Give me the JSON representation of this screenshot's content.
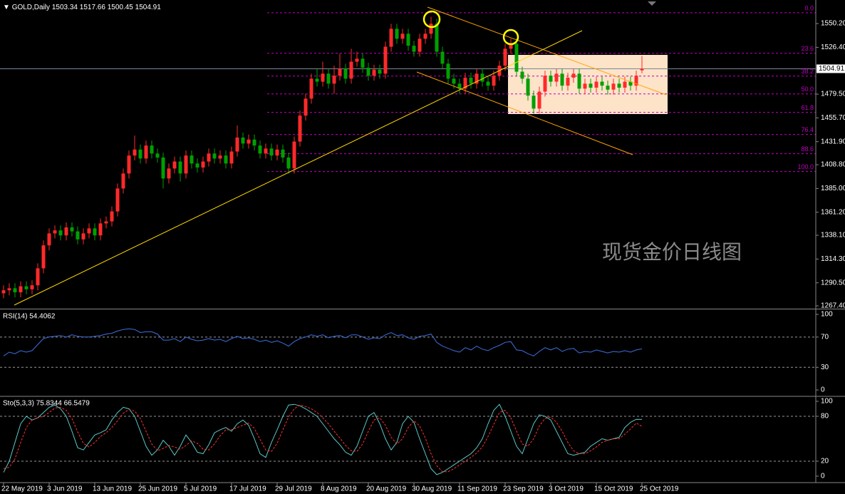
{
  "chart_data": [
    {
      "type": "candlestick",
      "header": {
        "symbol": "GOLD,Daily",
        "ohlc": [
          1503.34,
          1517.66,
          1500.45,
          1504.91
        ]
      },
      "open": [
        1280,
        1283,
        1285,
        1281,
        1287,
        1284,
        1288,
        1305,
        1328,
        1340,
        1343,
        1338,
        1346,
        1342,
        1334,
        1340,
        1345,
        1338,
        1350,
        1352,
        1362,
        1385,
        1400,
        1418,
        1424,
        1415,
        1428,
        1420,
        1416,
        1395,
        1405,
        1412,
        1400,
        1418,
        1410,
        1406,
        1412,
        1420,
        1415,
        1418,
        1410,
        1422,
        1436,
        1430,
        1434,
        1428,
        1420,
        1425,
        1418,
        1424,
        1416,
        1405,
        1432,
        1458,
        1475,
        1495,
        1492,
        1500,
        1490,
        1498,
        1505,
        1495,
        1512,
        1515,
        1506,
        1498,
        1504,
        1500,
        1527,
        1545,
        1535,
        1540,
        1528,
        1522,
        1535,
        1540,
        1550,
        1522,
        1510,
        1495,
        1490,
        1485,
        1496,
        1490,
        1500,
        1492,
        1488,
        1498,
        1508,
        1525,
        1530,
        1502,
        1495,
        1478,
        1465,
        1482,
        1498,
        1492,
        1500,
        1488,
        1496,
        1500,
        1485,
        1490,
        1486,
        1492,
        1488,
        1484,
        1490,
        1486,
        1492,
        1488,
        1503.34
      ],
      "high": [
        1288,
        1290,
        1290,
        1292,
        1292,
        1293,
        1310,
        1333,
        1345,
        1348,
        1348,
        1351,
        1351,
        1347,
        1345,
        1350,
        1350,
        1355,
        1357,
        1367,
        1390,
        1405,
        1423,
        1438,
        1429,
        1433,
        1433,
        1425,
        1421,
        1410,
        1417,
        1417,
        1423,
        1423,
        1415,
        1417,
        1425,
        1425,
        1423,
        1423,
        1427,
        1448,
        1441,
        1439,
        1439,
        1433,
        1430,
        1430,
        1429,
        1429,
        1421,
        1437,
        1463,
        1480,
        1500,
        1505,
        1512,
        1505,
        1508,
        1520,
        1510,
        1525,
        1522,
        1520,
        1511,
        1509,
        1509,
        1532,
        1550,
        1550,
        1545,
        1545,
        1533,
        1540,
        1545,
        1557,
        1555,
        1527,
        1515,
        1500,
        1495,
        1501,
        1501,
        1505,
        1505,
        1497,
        1503,
        1513,
        1530,
        1535,
        1535,
        1507,
        1500,
        1483,
        1487,
        1503,
        1503,
        1505,
        1505,
        1501,
        1505,
        1505,
        1495,
        1495,
        1497,
        1497,
        1493,
        1495,
        1495,
        1497,
        1497,
        1503,
        1517.66
      ],
      "low": [
        1275,
        1278,
        1276,
        1276,
        1279,
        1279,
        1283,
        1300,
        1323,
        1335,
        1333,
        1333,
        1337,
        1329,
        1329,
        1335,
        1333,
        1333,
        1345,
        1347,
        1357,
        1380,
        1395,
        1413,
        1410,
        1410,
        1415,
        1411,
        1385,
        1390,
        1400,
        1392,
        1395,
        1405,
        1401,
        1401,
        1407,
        1410,
        1410,
        1405,
        1405,
        1417,
        1425,
        1425,
        1423,
        1415,
        1415,
        1413,
        1413,
        1411,
        1400,
        1400,
        1427,
        1453,
        1470,
        1487,
        1487,
        1485,
        1480,
        1493,
        1490,
        1490,
        1507,
        1501,
        1493,
        1493,
        1495,
        1495,
        1522,
        1530,
        1530,
        1523,
        1517,
        1517,
        1530,
        1535,
        1517,
        1505,
        1490,
        1485,
        1480,
        1480,
        1485,
        1485,
        1487,
        1483,
        1483,
        1493,
        1503,
        1520,
        1497,
        1490,
        1473,
        1460,
        1460,
        1477,
        1487,
        1487,
        1483,
        1483,
        1491,
        1480,
        1480,
        1481,
        1481,
        1483,
        1479,
        1479,
        1481,
        1481,
        1483,
        1483,
        1500.45
      ],
      "close": [
        1283,
        1285,
        1281,
        1287,
        1284,
        1288,
        1305,
        1328,
        1340,
        1343,
        1338,
        1346,
        1342,
        1334,
        1340,
        1345,
        1338,
        1350,
        1352,
        1362,
        1385,
        1400,
        1418,
        1424,
        1415,
        1428,
        1420,
        1416,
        1395,
        1405,
        1412,
        1400,
        1418,
        1410,
        1406,
        1412,
        1420,
        1415,
        1418,
        1410,
        1422,
        1436,
        1430,
        1434,
        1428,
        1420,
        1425,
        1418,
        1424,
        1416,
        1405,
        1432,
        1458,
        1475,
        1495,
        1492,
        1500,
        1490,
        1498,
        1505,
        1495,
        1512,
        1515,
        1506,
        1498,
        1504,
        1500,
        1527,
        1545,
        1535,
        1540,
        1528,
        1522,
        1535,
        1540,
        1550,
        1522,
        1510,
        1495,
        1490,
        1485,
        1496,
        1490,
        1500,
        1492,
        1488,
        1498,
        1508,
        1525,
        1530,
        1502,
        1495,
        1478,
        1465,
        1482,
        1498,
        1492,
        1500,
        1488,
        1496,
        1500,
        1485,
        1490,
        1486,
        1492,
        1488,
        1484,
        1490,
        1486,
        1492,
        1488,
        1498,
        1504.91
      ],
      "colors": {
        "up": "#ff2a2a",
        "down": "#00a000"
      },
      "xlim": [
        -0.625,
        142.5
      ],
      "ylim": [
        1265.3,
        1573.8
      ],
      "yticks": [
        {
          "value": 1550.2,
          "label": "1550.20"
        },
        {
          "value": 1526.4,
          "label": "1526.40"
        },
        {
          "value": 1479.5,
          "label": "1479.50"
        },
        {
          "value": 1455.7,
          "label": "1455.70"
        },
        {
          "value": 1431.9,
          "label": "1431.90"
        },
        {
          "value": 1408.8,
          "label": "1408.80"
        },
        {
          "value": 1385,
          "label": "1385.00"
        },
        {
          "value": 1361.2,
          "label": "1361.20"
        },
        {
          "value": 1338.1,
          "label": "1338.10"
        },
        {
          "value": 1314.3,
          "label": "1314.30"
        },
        {
          "value": 1290.5,
          "label": "1290.50"
        },
        {
          "value": 1267.4,
          "label": "1267.40"
        }
      ],
      "xticks": [
        {
          "value": 0,
          "label": "22 May 2019"
        },
        {
          "value": 8,
          "label": "3 Jun 2019"
        },
        {
          "value": 16,
          "label": "13 Jun 2019"
        },
        {
          "value": 24,
          "label": "25 Jun 2019"
        },
        {
          "value": 32,
          "label": "5 Jul 2019"
        },
        {
          "value": 40,
          "label": "17 Jul 2019"
        },
        {
          "value": 48,
          "label": "29 Jul 2019"
        },
        {
          "value": 56,
          "label": "8 Aug 2019"
        },
        {
          "value": 64,
          "label": "20 Aug 2019"
        },
        {
          "value": 72,
          "label": "30 Aug 2019"
        },
        {
          "value": 80,
          "label": "11 Sep 2019"
        },
        {
          "value": 88,
          "label": "23 Sep 2019"
        },
        {
          "value": 96,
          "label": "3 Oct 2019"
        },
        {
          "value": 104,
          "label": "15 Oct 2019"
        },
        {
          "value": 112,
          "label": "25 Oct 2019"
        }
      ],
      "last_price": 1504.91,
      "fib_levels": [
        {
          "label": "0.0",
          "value": 1561
        },
        {
          "label": "23.6",
          "value": 1520.4
        },
        {
          "label": "38.2",
          "value": 1497.6
        },
        {
          "label": "50.0",
          "value": 1479.7
        },
        {
          "label": "61.8",
          "value": 1461.2
        },
        {
          "label": "76.4",
          "value": 1439.1
        },
        {
          "label": "88.6",
          "value": 1419.8
        },
        {
          "label": "100.0",
          "value": 1402
        }
      ],
      "fib_color": "#c000c0",
      "watermark": "现货金价日线图"
    },
    {
      "type": "line",
      "title": "RSI(14) 54.4062",
      "color": "#3d6fe0",
      "values": [
        45,
        50,
        48,
        52,
        50,
        52,
        60,
        68,
        70,
        71,
        72,
        70,
        73,
        71,
        70,
        70,
        71,
        72,
        74,
        75,
        78,
        80,
        81,
        80,
        76,
        77,
        77,
        74,
        66,
        66,
        68,
        64,
        70,
        67,
        65,
        66,
        68,
        66,
        67,
        64,
        68,
        71,
        68,
        69,
        67,
        64,
        66,
        63,
        65,
        62,
        58,
        64,
        68,
        70,
        73,
        71,
        73,
        69,
        71,
        72,
        69,
        73,
        73,
        70,
        67,
        69,
        68,
        73,
        76,
        72,
        73,
        69,
        67,
        71,
        72,
        74,
        63,
        58,
        55,
        52,
        50,
        56,
        53,
        58,
        54,
        52,
        56,
        59,
        63,
        64,
        53,
        52,
        48,
        45,
        51,
        56,
        53,
        56,
        51,
        54,
        55,
        49,
        51,
        50,
        53,
        51,
        49,
        51,
        50,
        52,
        50,
        53,
        54.4062
      ],
      "xlim": [
        -0.625,
        142.5
      ],
      "ylim": [
        -7.5,
        105.7
      ],
      "yticks": [
        100,
        70,
        30,
        0
      ],
      "levels": [
        70,
        30
      ]
    },
    {
      "type": "line",
      "title": "Sto(5,3,3) 75.8344 66.5479",
      "series": [
        {
          "color": "#5cc8c8",
          "values": [
            5,
            20,
            45,
            70,
            80,
            75,
            78,
            85,
            92,
            95,
            90,
            80,
            60,
            38,
            35,
            45,
            55,
            58,
            62,
            75,
            85,
            92,
            90,
            80,
            60,
            40,
            28,
            35,
            48,
            40,
            28,
            40,
            55,
            45,
            32,
            30,
            42,
            58,
            62,
            65,
            60,
            70,
            75,
            68,
            50,
            30,
            25,
            45,
            62,
            80,
            95,
            96,
            94,
            90,
            85,
            80,
            70,
            60,
            50,
            42,
            32,
            28,
            40,
            60,
            80,
            85,
            70,
            50,
            35,
            45,
            70,
            80,
            72,
            50,
            30,
            10,
            2,
            5,
            10,
            15,
            20,
            25,
            30,
            38,
            50,
            70,
            88,
            96,
            80,
            60,
            40,
            30,
            50,
            70,
            82,
            80,
            75,
            60,
            45,
            30,
            28,
            30,
            32,
            40,
            45,
            50,
            48,
            50,
            52,
            65,
            72,
            76,
            75.8344
          ]
        },
        {
          "color": "#ff3030",
          "dash": true,
          "values": [
            10,
            12,
            23,
            45,
            65,
            75,
            78,
            80,
            85,
            91,
            92,
            88,
            77,
            59,
            44,
            39,
            45,
            53,
            58,
            65,
            74,
            84,
            89,
            87,
            77,
            60,
            43,
            34,
            37,
            41,
            39,
            36,
            41,
            47,
            44,
            36,
            35,
            43,
            54,
            62,
            62,
            65,
            68,
            71,
            64,
            49,
            35,
            33,
            44,
            62,
            79,
            90,
            95,
            93,
            90,
            85,
            78,
            70,
            60,
            51,
            41,
            34,
            33,
            43,
            60,
            75,
            78,
            68,
            52,
            43,
            50,
            65,
            74,
            67,
            51,
            30,
            14,
            6,
            6,
            10,
            15,
            20,
            25,
            31,
            39,
            53,
            69,
            85,
            88,
            78,
            60,
            43,
            40,
            50,
            67,
            77,
            79,
            72,
            60,
            45,
            34,
            30,
            30,
            34,
            39,
            45,
            48,
            50,
            50,
            56,
            63,
            71,
            66.5479
          ]
        }
      ],
      "xlim": [
        -0.625,
        142.5
      ],
      "ylim": [
        -8.6,
        105.7
      ],
      "yticks": [
        100,
        80,
        20,
        0
      ],
      "levels": [
        80,
        20
      ]
    }
  ]
}
